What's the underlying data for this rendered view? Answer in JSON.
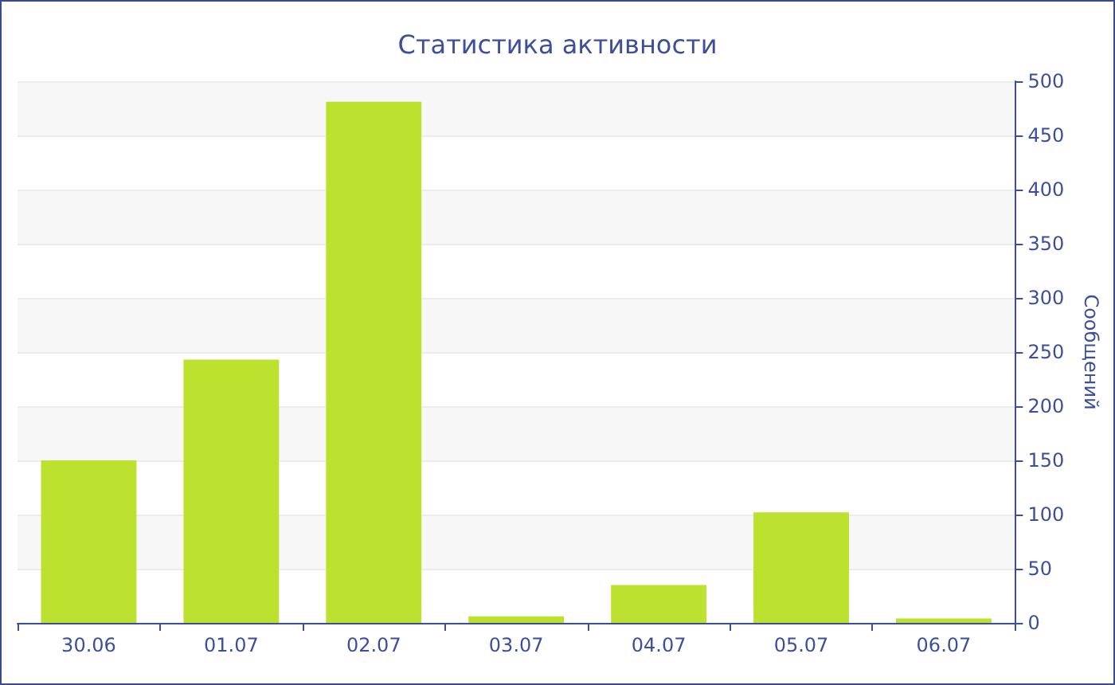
{
  "chart_data": {
    "type": "bar",
    "title": "Статистика активности",
    "ylabel": "Сообщений",
    "categories": [
      "30.06",
      "01.07",
      "02.07",
      "03.07",
      "04.07",
      "05.07",
      "06.07"
    ],
    "values": [
      150,
      243,
      481,
      6,
      35,
      102,
      4
    ],
    "color": "#bce12f",
    "ylim": [
      0,
      500
    ],
    "yticks": [
      0,
      50,
      100,
      150,
      200,
      250,
      300,
      350,
      400,
      450,
      500
    ],
    "grid": "y"
  }
}
